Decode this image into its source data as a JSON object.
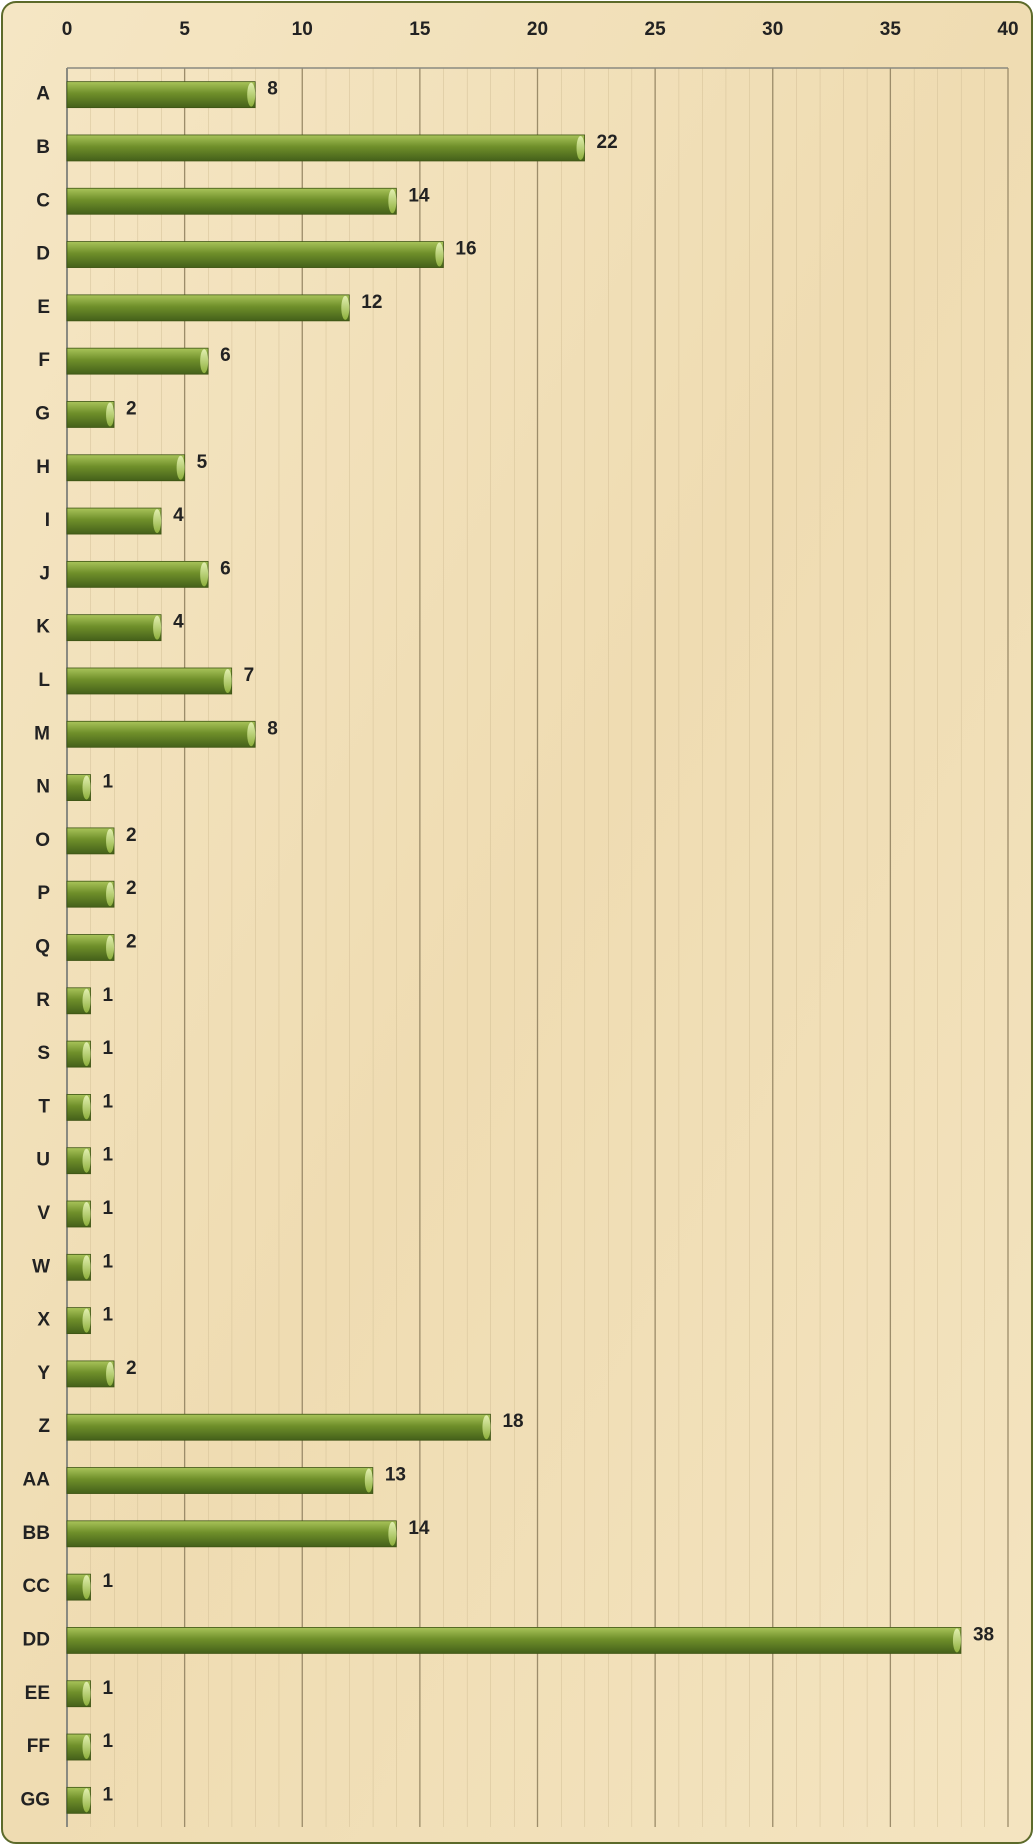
{
  "chart_data": {
    "type": "barh",
    "categories": [
      "A",
      "B",
      "C",
      "D",
      "E",
      "F",
      "G",
      "H",
      "I",
      "J",
      "K",
      "L",
      "M",
      "N",
      "O",
      "P",
      "Q",
      "R",
      "S",
      "T",
      "U",
      "V",
      "W",
      "X",
      "Y",
      "Z",
      "AA",
      "BB",
      "CC",
      "DD",
      "EE",
      "FF",
      "GG"
    ],
    "values": [
      8,
      22,
      14,
      16,
      12,
      6,
      2,
      5,
      4,
      6,
      4,
      7,
      8,
      1,
      2,
      2,
      2,
      1,
      1,
      1,
      1,
      1,
      1,
      1,
      2,
      18,
      13,
      14,
      1,
      38,
      1,
      1,
      1
    ],
    "color": "#6f8f2a",
    "xlim": [
      0,
      40
    ],
    "xticks": [
      0,
      5,
      10,
      15,
      20,
      25,
      30,
      35,
      40
    ],
    "grid": true
  }
}
